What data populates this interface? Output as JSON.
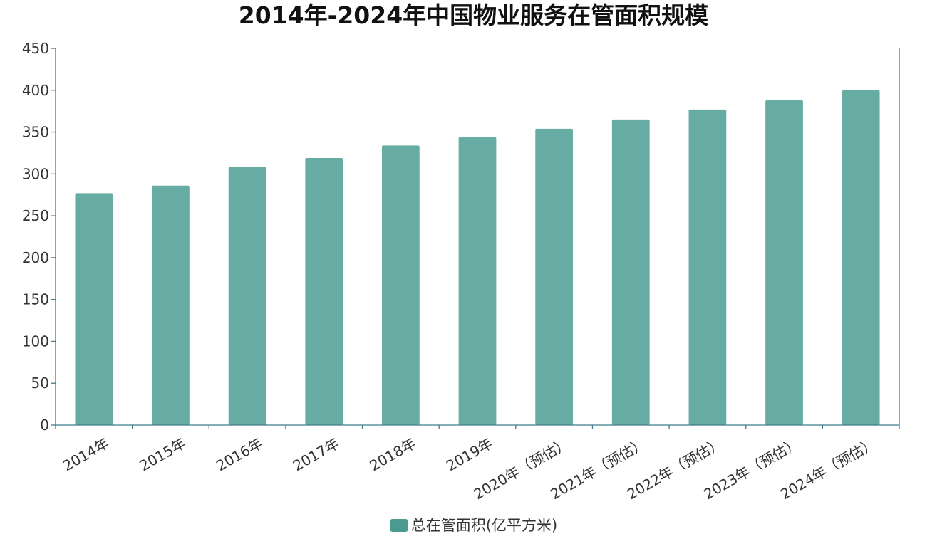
{
  "chart_data": {
    "type": "bar",
    "title": "2014年-2024年中国物业服务在管面积规模",
    "categories": [
      "2014年",
      "2015年",
      "2016年",
      "2017年",
      "2018年",
      "2019年",
      "2020年（预估）",
      "2021年（预估）",
      "2022年（预估）",
      "2023年（预估）",
      "2024年（预估）"
    ],
    "series": [
      {
        "name": "总在管面积(亿平方米)",
        "values": [
          277,
          286,
          308,
          319,
          334,
          344,
          354,
          365,
          377,
          388,
          400
        ]
      }
    ],
    "ylim": [
      0,
      450
    ],
    "yticks": [
      0,
      50,
      100,
      150,
      200,
      250,
      300,
      350,
      400,
      450
    ],
    "grid": false,
    "legend_position": "bottom",
    "bar_color": "#67ACA3",
    "legend_color": "#4A9A8E",
    "axis_color": "#3E7C8E"
  }
}
